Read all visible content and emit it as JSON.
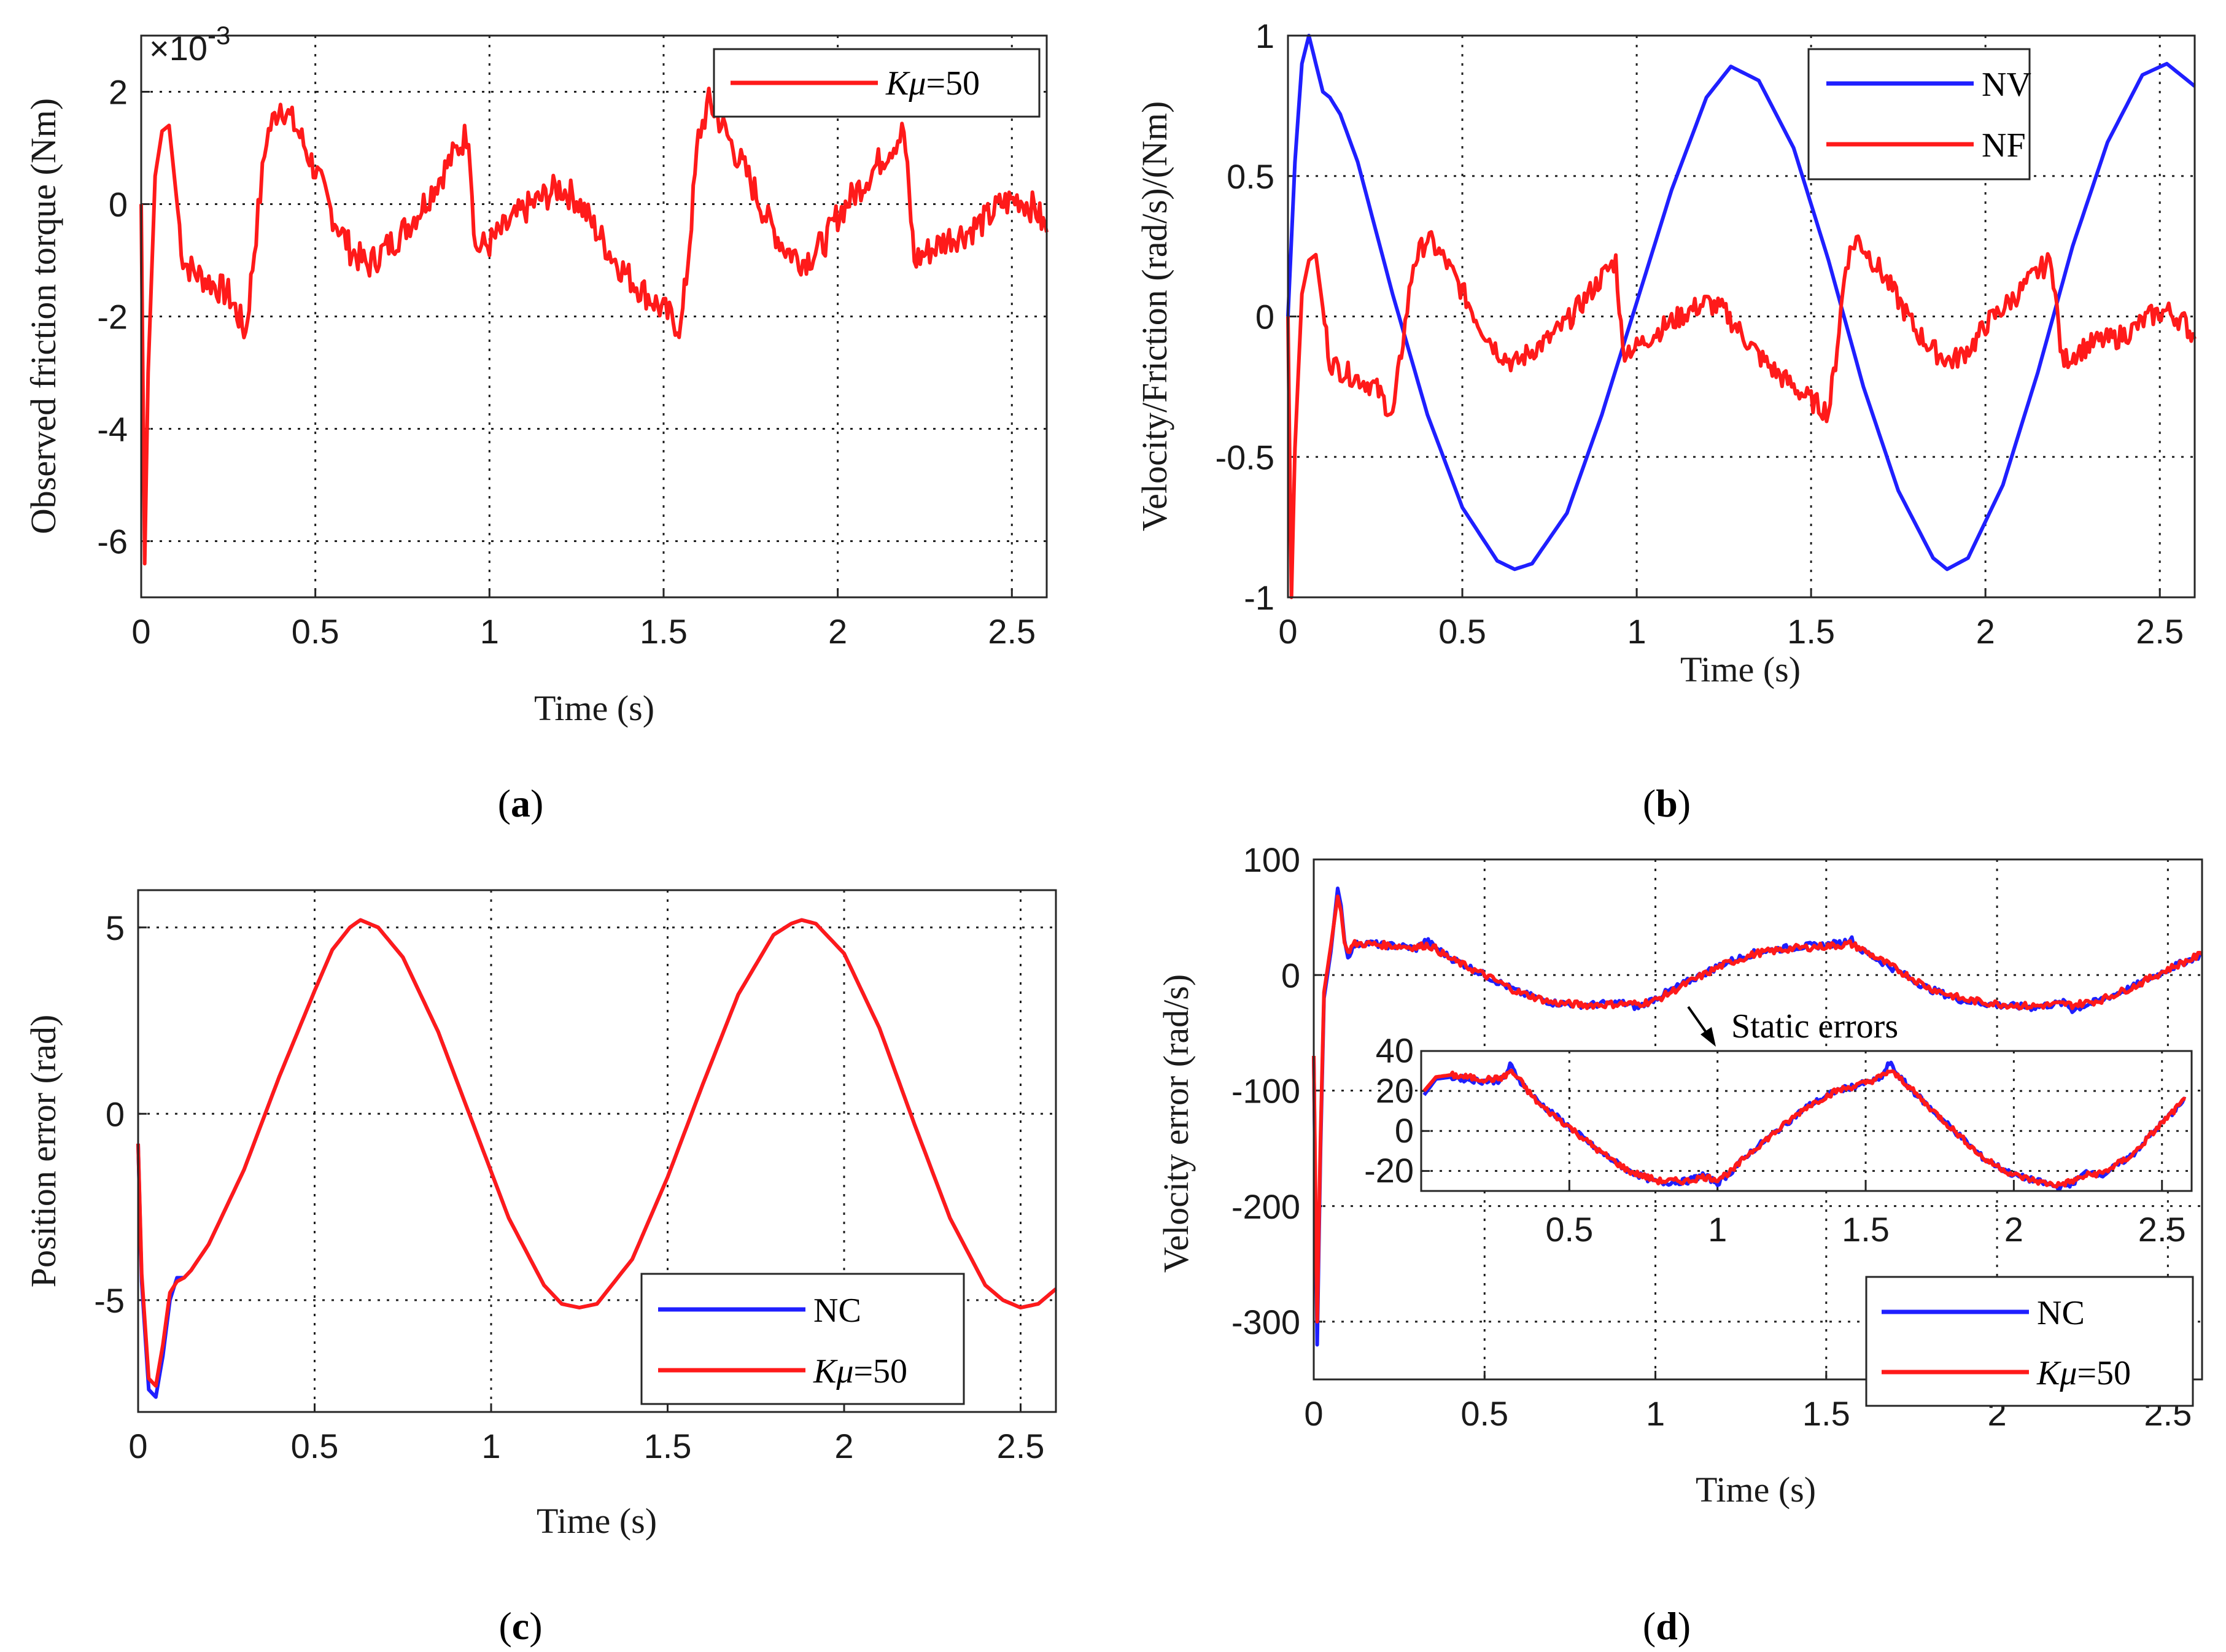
{
  "colors": {
    "blue": "#1f1fff",
    "red": "#ff1a1a"
  },
  "chart_data": [
    {
      "id": "a",
      "type": "line",
      "caption": "a",
      "xlabel": "Time (s)",
      "ylabel": "Observed friction torque (Nm)",
      "y_multiplier": "×10",
      "y_exponent": "-3",
      "xlim": [
        0,
        2.6
      ],
      "ylim": [
        -7,
        3
      ],
      "xticks": [
        0,
        0.5,
        1,
        1.5,
        2,
        2.5
      ],
      "yticks": [
        -6,
        -4,
        -2,
        0,
        2
      ],
      "xtick_labels": [
        "0",
        "0.5",
        "1",
        "1.5",
        "2",
        "2.5"
      ],
      "ytick_labels": [
        "-6",
        "-4",
        "-2",
        "0",
        "2"
      ],
      "grid": true,
      "legend_position": "top-right",
      "series": [
        {
          "name": "Kμ=50",
          "color": "#ff1a1a",
          "x": [
            0,
            0.01,
            0.02,
            0.04,
            0.06,
            0.08,
            0.1,
            0.12,
            0.15,
            0.2,
            0.25,
            0.28,
            0.3,
            0.33,
            0.36,
            0.4,
            0.45,
            0.5,
            0.55,
            0.6,
            0.65,
            0.7,
            0.75,
            0.8,
            0.85,
            0.9,
            0.94,
            0.96,
            1.0,
            1.05,
            1.1,
            1.15,
            1.2,
            1.25,
            1.3,
            1.35,
            1.4,
            1.45,
            1.5,
            1.55,
            1.57,
            1.6,
            1.63,
            1.66,
            1.7,
            1.75,
            1.8,
            1.85,
            1.9,
            1.93,
            1.97,
            2.0,
            2.05,
            2.1,
            2.15,
            2.19,
            2.22,
            2.27,
            2.32,
            2.37,
            2.42,
            2.47,
            2.52,
            2.57,
            2.6
          ],
          "y": [
            0,
            -6.4,
            -3.0,
            0.5,
            1.3,
            1.4,
            0.2,
            -1.0,
            -1.2,
            -1.4,
            -1.6,
            -2.0,
            -2.3,
            -0.5,
            1.2,
            1.8,
            1.3,
            0.6,
            -0.2,
            -0.8,
            -1.1,
            -0.8,
            -0.5,
            -0.1,
            0.4,
            0.9,
            1.3,
            -0.8,
            -0.7,
            -0.4,
            -0.1,
            0.1,
            0.3,
            0.1,
            -0.4,
            -0.9,
            -1.3,
            -1.6,
            -1.9,
            -2.2,
            -1.0,
            1.2,
            1.8,
            1.5,
            1.0,
            0.4,
            -0.3,
            -0.8,
            -1.0,
            -0.9,
            -0.6,
            -0.2,
            0.2,
            0.6,
            1.0,
            1.3,
            -1.0,
            -0.8,
            -0.6,
            -0.5,
            -0.3,
            0,
            0.1,
            -0.1,
            -0.5
          ]
        }
      ]
    },
    {
      "id": "b",
      "type": "line",
      "caption": "b",
      "xlabel": "Time (s)",
      "ylabel": "Velocity/Friction (rad/s)/(Nm)",
      "xlim": [
        0,
        2.6
      ],
      "ylim": [
        -1,
        1
      ],
      "xticks": [
        0,
        0.5,
        1,
        1.5,
        2,
        2.5
      ],
      "yticks": [
        -1,
        -0.5,
        0,
        0.5,
        1
      ],
      "xtick_labels": [
        "0",
        "0.5",
        "1",
        "1.5",
        "2",
        "2.5"
      ],
      "ytick_labels": [
        "-1",
        "-0.5",
        "0",
        "0.5",
        "1"
      ],
      "grid": true,
      "legend_position": "top-right",
      "series": [
        {
          "name": "NV",
          "color": "#1f1fff",
          "x": [
            0,
            0.02,
            0.04,
            0.06,
            0.08,
            0.1,
            0.12,
            0.15,
            0.2,
            0.3,
            0.4,
            0.5,
            0.6,
            0.65,
            0.7,
            0.8,
            0.9,
            1.0,
            1.1,
            1.2,
            1.27,
            1.35,
            1.45,
            1.55,
            1.65,
            1.75,
            1.85,
            1.89,
            1.95,
            2.05,
            2.15,
            2.25,
            2.35,
            2.45,
            2.52,
            2.6
          ],
          "y": [
            0,
            0.55,
            0.9,
            1.0,
            0.9,
            0.8,
            0.78,
            0.72,
            0.55,
            0.08,
            -0.35,
            -0.68,
            -0.87,
            -0.9,
            -0.88,
            -0.7,
            -0.35,
            0.05,
            0.45,
            0.78,
            0.89,
            0.84,
            0.6,
            0.2,
            -0.25,
            -0.62,
            -0.86,
            -0.9,
            -0.86,
            -0.6,
            -0.2,
            0.25,
            0.62,
            0.86,
            0.9,
            0.82
          ]
        },
        {
          "name": "NF",
          "color": "#ff1a1a",
          "x": [
            0,
            0.01,
            0.02,
            0.04,
            0.06,
            0.08,
            0.1,
            0.12,
            0.15,
            0.2,
            0.25,
            0.28,
            0.3,
            0.33,
            0.36,
            0.4,
            0.45,
            0.5,
            0.55,
            0.6,
            0.65,
            0.7,
            0.75,
            0.8,
            0.85,
            0.9,
            0.94,
            0.96,
            1.0,
            1.05,
            1.1,
            1.15,
            1.2,
            1.25,
            1.3,
            1.35,
            1.4,
            1.45,
            1.5,
            1.55,
            1.57,
            1.6,
            1.63,
            1.66,
            1.7,
            1.75,
            1.8,
            1.85,
            1.9,
            1.93,
            1.97,
            2.0,
            2.05,
            2.1,
            2.15,
            2.19,
            2.22,
            2.27,
            2.32,
            2.37,
            2.42,
            2.47,
            2.52,
            2.57,
            2.6
          ],
          "y": [
            0,
            -1.0,
            -0.47,
            0.08,
            0.2,
            0.22,
            0.03,
            -0.16,
            -0.19,
            -0.22,
            -0.25,
            -0.31,
            -0.36,
            -0.08,
            0.19,
            0.28,
            0.2,
            0.09,
            -0.03,
            -0.12,
            -0.17,
            -0.12,
            -0.08,
            -0.02,
            0.06,
            0.14,
            0.2,
            -0.12,
            -0.11,
            -0.06,
            -0.02,
            0.02,
            0.05,
            0.02,
            -0.06,
            -0.14,
            -0.2,
            -0.25,
            -0.3,
            -0.34,
            -0.16,
            0.19,
            0.28,
            0.23,
            0.16,
            0.06,
            -0.05,
            -0.12,
            -0.16,
            -0.14,
            -0.09,
            -0.03,
            0.03,
            0.09,
            0.16,
            0.2,
            -0.16,
            -0.12,
            -0.09,
            -0.08,
            -0.05,
            0,
            0.02,
            -0.02,
            -0.08
          ]
        }
      ]
    },
    {
      "id": "c",
      "type": "line",
      "caption": "c",
      "xlabel": "Time (s)",
      "ylabel": "Position error (rad)",
      "xlim": [
        0,
        2.6
      ],
      "ylim": [
        -8,
        6
      ],
      "xticks": [
        0,
        0.5,
        1,
        1.5,
        2,
        2.5
      ],
      "yticks": [
        -5,
        0,
        5
      ],
      "xtick_labels": [
        "0",
        "0.5",
        "1",
        "1.5",
        "2",
        "2.5"
      ],
      "ytick_labels": [
        "-5",
        "0",
        "5"
      ],
      "grid": true,
      "legend_position": "bottom-right",
      "series": [
        {
          "name": "NC",
          "color": "#1f1fff",
          "x": [
            0,
            0.01,
            0.03,
            0.05,
            0.07,
            0.09,
            0.11,
            0.13,
            0.15,
            0.2,
            0.3,
            0.4,
            0.5,
            0.55,
            0.6,
            0.63,
            0.68,
            0.75,
            0.85,
            0.95,
            1.05,
            1.15,
            1.2,
            1.25,
            1.3,
            1.4,
            1.5,
            1.6,
            1.7,
            1.8,
            1.85,
            1.88,
            1.92,
            2.0,
            2.1,
            2.2,
            2.3,
            2.4,
            2.45,
            2.5,
            2.55,
            2.6
          ],
          "y": [
            -0.8,
            -4.5,
            -7.4,
            -7.6,
            -6.5,
            -5.0,
            -4.4,
            -4.4,
            -4.2,
            -3.5,
            -1.5,
            1.0,
            3.3,
            4.4,
            5.0,
            5.2,
            5.0,
            4.2,
            2.2,
            -0.3,
            -2.8,
            -4.6,
            -5.1,
            -5.2,
            -5.1,
            -3.9,
            -1.7,
            0.8,
            3.2,
            4.8,
            5.1,
            5.2,
            5.1,
            4.3,
            2.3,
            -0.3,
            -2.8,
            -4.6,
            -5.0,
            -5.2,
            -5.1,
            -4.7
          ]
        },
        {
          "name": "Kμ=50",
          "color": "#ff1a1a",
          "x": [
            0,
            0.01,
            0.03,
            0.05,
            0.07,
            0.09,
            0.11,
            0.13,
            0.15,
            0.2,
            0.3,
            0.4,
            0.5,
            0.55,
            0.6,
            0.63,
            0.68,
            0.75,
            0.85,
            0.95,
            1.05,
            1.15,
            1.2,
            1.25,
            1.3,
            1.4,
            1.5,
            1.6,
            1.7,
            1.8,
            1.85,
            1.88,
            1.92,
            2.0,
            2.1,
            2.2,
            2.3,
            2.4,
            2.45,
            2.5,
            2.55,
            2.6
          ],
          "y": [
            -0.8,
            -4.3,
            -7.1,
            -7.3,
            -6.2,
            -4.8,
            -4.5,
            -4.4,
            -4.2,
            -3.5,
            -1.5,
            1.0,
            3.3,
            4.4,
            5.0,
            5.2,
            5.0,
            4.2,
            2.2,
            -0.3,
            -2.8,
            -4.6,
            -5.1,
            -5.2,
            -5.1,
            -3.9,
            -1.7,
            0.8,
            3.2,
            4.8,
            5.1,
            5.2,
            5.1,
            4.3,
            2.3,
            -0.3,
            -2.8,
            -4.6,
            -5.0,
            -5.2,
            -5.1,
            -4.7
          ]
        }
      ]
    },
    {
      "id": "d",
      "type": "line",
      "caption": "d",
      "xlabel": "Time (s)",
      "ylabel": "Velocity error (rad/s)",
      "annotation": "Static errors",
      "xlim": [
        0,
        2.6
      ],
      "ylim": [
        -350,
        100
      ],
      "xticks": [
        0,
        0.5,
        1,
        1.5,
        2,
        2.5
      ],
      "yticks": [
        -300,
        -200,
        -100,
        0,
        100
      ],
      "xtick_labels": [
        "0",
        "0.5",
        "1",
        "1.5",
        "2",
        "2.5"
      ],
      "ytick_labels": [
        "-300",
        "-200",
        "-100",
        "0",
        "100"
      ],
      "grid": true,
      "legend_position": "bottom-right",
      "series": [
        {
          "name": "NC",
          "color": "#1f1fff",
          "x": [
            0,
            0.01,
            0.02,
            0.03,
            0.05,
            0.07,
            0.08,
            0.09,
            0.1,
            0.11,
            0.12,
            0.15,
            0.2,
            0.25,
            0.3,
            0.33,
            0.35,
            0.4,
            0.5,
            0.6,
            0.7,
            0.8,
            0.9,
            0.95,
            1.0,
            1.1,
            1.2,
            1.3,
            1.4,
            1.5,
            1.55,
            1.57,
            1.6,
            1.7,
            1.8,
            1.9,
            2.0,
            2.1,
            2.2,
            2.22,
            2.3,
            2.4,
            2.5,
            2.6
          ],
          "y": [
            -70,
            -320,
            -150,
            -20,
            20,
            75,
            60,
            30,
            15,
            22,
            26,
            28,
            26,
            25,
            23,
            30,
            25,
            15,
            0,
            -15,
            -24,
            -26,
            -24,
            -28,
            -20,
            -5,
            10,
            20,
            24,
            26,
            28,
            32,
            22,
            5,
            -12,
            -22,
            -26,
            -28,
            -24,
            -30,
            -22,
            -10,
            5,
            18
          ]
        },
        {
          "name": "Kμ=50",
          "color": "#ff1a1a",
          "x": [
            0,
            0.01,
            0.02,
            0.03,
            0.05,
            0.07,
            0.08,
            0.09,
            0.1,
            0.11,
            0.12,
            0.15,
            0.2,
            0.25,
            0.3,
            0.33,
            0.35,
            0.4,
            0.5,
            0.6,
            0.7,
            0.8,
            0.9,
            0.95,
            1.0,
            1.1,
            1.2,
            1.3,
            1.4,
            1.5,
            1.55,
            1.57,
            1.6,
            1.7,
            1.8,
            1.9,
            2.0,
            2.1,
            2.2,
            2.22,
            2.3,
            2.4,
            2.5,
            2.6
          ],
          "y": [
            -70,
            -300,
            -140,
            -15,
            25,
            68,
            55,
            28,
            20,
            24,
            27,
            27,
            26,
            25,
            24,
            26,
            24,
            14,
            0,
            -15,
            -24,
            -26,
            -25,
            -25,
            -22,
            -6,
            9,
            19,
            23,
            25,
            26,
            27,
            23,
            6,
            -11,
            -21,
            -25,
            -27,
            -25,
            -26,
            -22,
            -10,
            5,
            18
          ]
        }
      ],
      "inset": {
        "xlim": [
          0,
          2.6
        ],
        "ylim": [
          -30,
          40
        ],
        "xticks": [
          0.5,
          1,
          1.5,
          2,
          2.5
        ],
        "yticks": [
          -20,
          0,
          20,
          40
        ],
        "xtick_labels": [
          "0.5",
          "1",
          "1.5",
          "2",
          "2.5"
        ],
        "ytick_labels": [
          "-20",
          "0",
          "20",
          "40"
        ],
        "series": [
          {
            "name": "NC",
            "color": "#1f1fff",
            "x": [
              0.01,
              0.05,
              0.1,
              0.15,
              0.2,
              0.25,
              0.28,
              0.3,
              0.33,
              0.36,
              0.4,
              0.5,
              0.6,
              0.7,
              0.8,
              0.9,
              0.95,
              1.0,
              1.05,
              1.1,
              1.2,
              1.3,
              1.4,
              1.5,
              1.55,
              1.58,
              1.62,
              1.7,
              1.8,
              1.9,
              2.0,
              2.1,
              2.15,
              2.2,
              2.25,
              2.3,
              2.4,
              2.5,
              2.58
            ],
            "y": [
              18,
              26,
              27,
              26,
              25,
              25,
              26,
              33,
              26,
              20,
              14,
              2,
              -10,
              -20,
              -26,
              -25,
              -22,
              -26,
              -20,
              -12,
              0,
              12,
              20,
              24,
              26,
              34,
              26,
              14,
              0,
              -14,
              -22,
              -26,
              -28,
              -26,
              -20,
              -22,
              -12,
              4,
              16
            ]
          },
          {
            "name": "Kμ=50",
            "color": "#ff1a1a",
            "x": [
              0.01,
              0.05,
              0.1,
              0.15,
              0.2,
              0.25,
              0.28,
              0.3,
              0.33,
              0.36,
              0.4,
              0.5,
              0.6,
              0.7,
              0.8,
              0.9,
              0.95,
              1.0,
              1.05,
              1.1,
              1.2,
              1.3,
              1.4,
              1.5,
              1.55,
              1.58,
              1.62,
              1.7,
              1.8,
              1.9,
              2.0,
              2.1,
              2.15,
              2.2,
              2.25,
              2.3,
              2.4,
              2.5,
              2.58
            ],
            "y": [
              20,
              27,
              28,
              27,
              26,
              26,
              27,
              30,
              26,
              20,
              13,
              2,
              -10,
              -20,
              -25,
              -25,
              -23,
              -24,
              -20,
              -12,
              0,
              12,
              20,
              24,
              27,
              30,
              26,
              14,
              0,
              -14,
              -22,
              -26,
              -27,
              -25,
              -22,
              -21,
              -12,
              4,
              16
            ]
          }
        ]
      }
    }
  ]
}
